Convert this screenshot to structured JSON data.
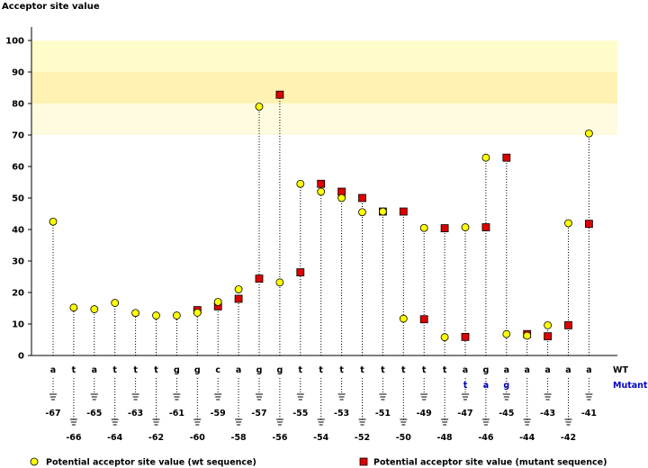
{
  "chart_data": {
    "type": "scatter",
    "title": "",
    "ylabel": "Acceptor site value",
    "ylim": [
      0,
      100
    ],
    "yticks": [
      0,
      10,
      20,
      30,
      40,
      50,
      60,
      70,
      80,
      90,
      100
    ],
    "grid": false,
    "highlight_bands": [
      {
        "from": 90,
        "to": 100,
        "color": "#fffccc"
      },
      {
        "from": 80,
        "to": 90,
        "color": "#fff2b3"
      },
      {
        "from": 70,
        "to": 80,
        "color": "#fffbe0"
      }
    ],
    "positions": [
      -67,
      -66,
      -65,
      -64,
      -63,
      -62,
      -61,
      -60,
      -59,
      -58,
      -57,
      -56,
      -55,
      -54,
      -53,
      -52,
      -51,
      -50,
      -49,
      -48,
      -47,
      -46,
      -45,
      -44,
      -43,
      -42,
      -41
    ],
    "wt_sequence": [
      "a",
      "t",
      "a",
      "t",
      "t",
      "t",
      "g",
      "g",
      "c",
      "a",
      "g",
      "g",
      "t",
      "t",
      "t",
      "t",
      "t",
      "t",
      "t",
      "t",
      "a",
      "g",
      "a",
      "a",
      "a",
      "a",
      "a"
    ],
    "mutant_sequence": [
      "",
      "",
      "",
      "",
      "",
      "",
      "",
      "",
      "",
      "",
      "",
      "",
      "",
      "",
      "",
      "",
      "",
      "",
      "",
      "",
      "t",
      "a",
      "g",
      "",
      "",
      "",
      ""
    ],
    "series": [
      {
        "name": "Potential acceptor site value (wt sequence)",
        "marker": "circle",
        "color": "#ffff00",
        "values": [
          42.5,
          15.2,
          14.7,
          16.7,
          13.5,
          12.7,
          12.7,
          13.6,
          17.0,
          21.0,
          79.0,
          23.2,
          54.5,
          52.0,
          50.0,
          45.5,
          45.7,
          11.7,
          40.5,
          5.8,
          40.7,
          62.8,
          6.8,
          6.3,
          9.6,
          42.0,
          70.5
        ]
      },
      {
        "name": "Potential acceptor site value (mutant sequence)",
        "marker": "square",
        "color": "#dd0000",
        "values": [
          null,
          null,
          null,
          null,
          null,
          null,
          null,
          14.4,
          15.6,
          18.0,
          24.4,
          82.8,
          26.4,
          54.5,
          52.0,
          50.0,
          45.7,
          45.7,
          11.5,
          40.4,
          5.9,
          40.7,
          62.8,
          6.8,
          6.1,
          9.6,
          41.8
        ]
      }
    ],
    "legend": {
      "placement": "bottom"
    },
    "row_labels": {
      "wt": "WT",
      "mutant": "Mutant"
    }
  },
  "colors": {
    "mutant_base": "#0000cc",
    "circle_fill": "#ffff00",
    "square_fill": "#dd0000"
  }
}
